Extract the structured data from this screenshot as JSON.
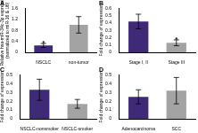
{
  "chart_data": [
    {
      "type": "bar",
      "title": "A",
      "y_label": [
        "Relative hsa-miR-34c-3p expression",
        "(normalized to miR-16 & U6)"
      ],
      "categories": [
        "NSCLC",
        "non-tumor"
      ],
      "values": [
        0.25,
        1.0
      ],
      "errors": [
        0.07,
        0.3
      ],
      "colors": [
        "#3f2a78",
        "#a3a3a3"
      ],
      "ylim": [
        0,
        1.6
      ],
      "yticks": [
        0,
        0.4,
        0.8,
        1.2,
        1.6
      ],
      "grid": false,
      "annotations": [
        {
          "text": "*",
          "category": "NSCLC"
        }
      ]
    },
    {
      "type": "bar",
      "title": "B",
      "y_label": "Fold change of expression",
      "categories": [
        "Stage I, II",
        "Stage III"
      ],
      "values": [
        0.42,
        0.13
      ],
      "errors": [
        0.1,
        0.04
      ],
      "colors": [
        "#3f2a78",
        "#a3a3a3"
      ],
      "ylim": [
        0,
        0.6
      ],
      "yticks": [
        0,
        0.1,
        0.2,
        0.3,
        0.4,
        0.5,
        0.6
      ],
      "grid": false,
      "annotations": [
        {
          "text": "*",
          "category": "Stage III"
        }
      ]
    },
    {
      "type": "bar",
      "title": "C",
      "y_label": "Fold change of expression",
      "categories": [
        "NSCLC-nonsmoker",
        "NSCLC-smoker"
      ],
      "values": [
        0.33,
        0.17
      ],
      "errors": [
        0.12,
        0.05
      ],
      "colors": [
        "#3f2a78",
        "#a3a3a3"
      ],
      "ylim": [
        0,
        0.5
      ],
      "yticks": [
        0,
        0.1,
        0.2,
        0.3,
        0.4,
        0.5
      ],
      "grid": false
    },
    {
      "type": "bar",
      "title": "D",
      "y_label": "Fold change of expression",
      "categories": [
        "Adenocarcinoma",
        "SCC"
      ],
      "values": [
        0.25,
        0.32
      ],
      "errors": [
        0.08,
        0.15
      ],
      "colors": [
        "#3f2a78",
        "#a3a3a3"
      ],
      "ylim": [
        0,
        0.5
      ],
      "yticks": [
        0,
        0.1,
        0.2,
        0.3,
        0.4,
        0.5
      ],
      "grid": false
    }
  ]
}
